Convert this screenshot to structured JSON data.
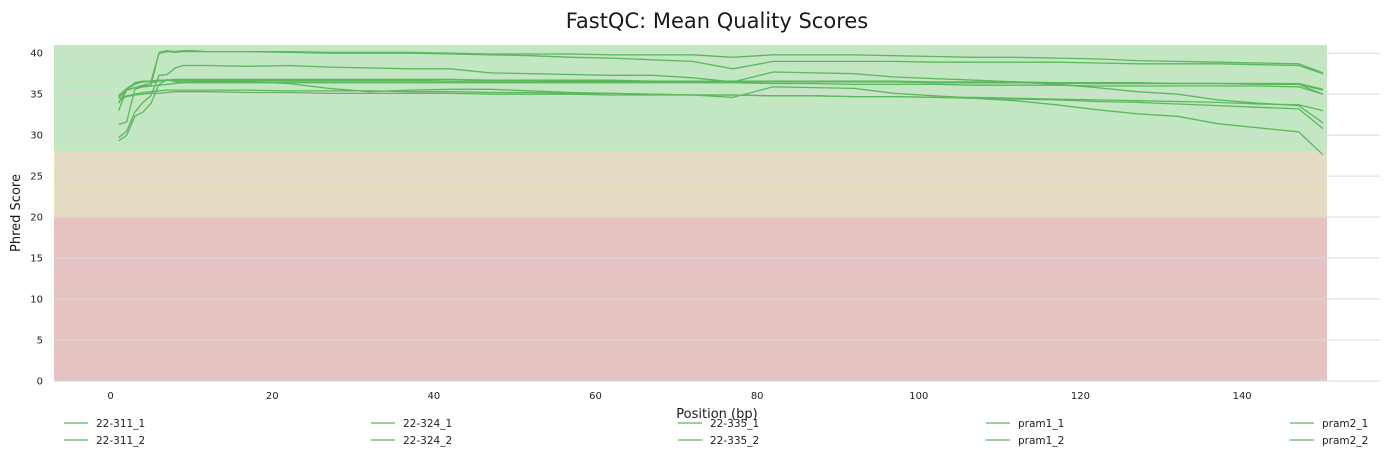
{
  "chart_data": {
    "type": "line",
    "title": "FastQC: Mean Quality Scores",
    "xlabel": "Position (bp)",
    "ylabel": "Phred Score",
    "xlim": [
      -7,
      150.5
    ],
    "ylim": [
      0,
      41
    ],
    "xticks": [
      0,
      20,
      40,
      60,
      80,
      100,
      120,
      140
    ],
    "yticks": [
      0,
      5,
      10,
      15,
      20,
      25,
      30,
      35,
      40
    ],
    "grid": true,
    "legend_position": "bottom",
    "line_color": "#5cb85c",
    "bands": [
      {
        "from": 28,
        "to": 41,
        "color": "#c3e6c3"
      },
      {
        "from": 20,
        "to": 28,
        "color": "#e6dcc3"
      },
      {
        "from": 0,
        "to": 20,
        "color": "#e6c3c3"
      }
    ],
    "series": [
      {
        "name": "22-311_1",
        "x": [
          1,
          2,
          3,
          4,
          5,
          6,
          7,
          8,
          9,
          10,
          12,
          17,
          22,
          27,
          32,
          37,
          42,
          47,
          52,
          57,
          62,
          67,
          72,
          77,
          82,
          87,
          92,
          97,
          102,
          107,
          112,
          117,
          122,
          127,
          132,
          137,
          142,
          147,
          150
        ],
        "y": [
          33.0,
          35.6,
          36.2,
          36.5,
          36.6,
          36.7,
          36.7,
          36.6,
          36.6,
          36.6,
          36.6,
          36.6,
          36.6,
          36.6,
          36.6,
          36.6,
          36.6,
          36.6,
          36.6,
          36.5,
          36.5,
          36.5,
          36.5,
          36.5,
          36.5,
          36.5,
          36.5,
          36.5,
          36.4,
          36.4,
          36.4,
          36.3,
          36.3,
          36.3,
          36.3,
          36.3,
          36.3,
          36.3,
          35.6
        ]
      },
      {
        "name": "22-311_2",
        "x": [
          1,
          2,
          3,
          4,
          5,
          6,
          7,
          8,
          9,
          10,
          12,
          17,
          22,
          27,
          32,
          37,
          42,
          47,
          52,
          57,
          62,
          67,
          72,
          77,
          82,
          87,
          92,
          97,
          102,
          107,
          112,
          117,
          122,
          127,
          132,
          137,
          142,
          147,
          150
        ],
        "y": [
          31.3,
          31.6,
          35.6,
          35.9,
          36.0,
          36.1,
          36.2,
          36.3,
          36.4,
          36.4,
          36.4,
          36.4,
          36.4,
          36.4,
          36.4,
          36.4,
          36.4,
          36.4,
          36.4,
          36.4,
          36.4,
          36.4,
          36.4,
          36.4,
          36.3,
          36.3,
          36.2,
          36.2,
          36.2,
          36.1,
          36.1,
          36.1,
          36.0,
          36.0,
          36.0,
          36.0,
          36.0,
          35.9,
          35.0
        ]
      },
      {
        "name": "22-324_1",
        "x": [
          1,
          2,
          3,
          4,
          5,
          6,
          7,
          8,
          9,
          10,
          12,
          17,
          22,
          27,
          32,
          37,
          42,
          47,
          52,
          57,
          62,
          67,
          72,
          77,
          82,
          87,
          92,
          97,
          102,
          107,
          112,
          117,
          122,
          127,
          132,
          137,
          142,
          147,
          150
        ],
        "y": [
          29.7,
          30.5,
          32.8,
          34.0,
          34.8,
          37.3,
          37.4,
          38.2,
          38.5,
          38.5,
          38.5,
          38.4,
          38.5,
          38.3,
          38.2,
          38.1,
          38.1,
          37.6,
          37.5,
          37.4,
          37.3,
          37.3,
          37.0,
          36.5,
          37.7,
          37.6,
          37.5,
          37.1,
          36.9,
          36.7,
          36.5,
          36.2,
          35.8,
          35.3,
          35.0,
          34.3,
          33.9,
          33.6,
          31.5
        ]
      },
      {
        "name": "22-324_2",
        "x": [
          1,
          2,
          3,
          4,
          5,
          6,
          7,
          8,
          9,
          10,
          12,
          17,
          22,
          27,
          32,
          37,
          42,
          47,
          52,
          57,
          62,
          67,
          72,
          77,
          82,
          87,
          92,
          97,
          102,
          107,
          112,
          117,
          122,
          127,
          132,
          137,
          142,
          147,
          150
        ],
        "y": [
          29.3,
          30.0,
          32.3,
          32.8,
          33.9,
          36.2,
          36.8,
          36.5,
          36.4,
          36.5,
          36.5,
          36.5,
          36.3,
          35.7,
          35.3,
          35.5,
          35.6,
          35.6,
          35.4,
          35.2,
          35.1,
          35.0,
          34.9,
          34.6,
          35.9,
          35.8,
          35.7,
          35.1,
          34.8,
          34.5,
          34.2,
          33.7,
          33.1,
          32.6,
          32.3,
          31.4,
          30.9,
          30.4,
          27.6
        ]
      },
      {
        "name": "22-335_1",
        "x": [
          1,
          2,
          3,
          4,
          5,
          6,
          7,
          8,
          9,
          10,
          12,
          17,
          22,
          27,
          32,
          37,
          42,
          47,
          52,
          57,
          62,
          67,
          72,
          77,
          82,
          87,
          92,
          97,
          102,
          107,
          112,
          117,
          122,
          127,
          132,
          137,
          142,
          147,
          150
        ],
        "y": [
          34.6,
          35.5,
          35.8,
          36.0,
          36.1,
          40.1,
          40.3,
          40.2,
          40.3,
          40.3,
          40.2,
          40.2,
          40.2,
          40.1,
          40.1,
          40.1,
          40.0,
          39.9,
          39.9,
          39.9,
          39.8,
          39.8,
          39.8,
          39.5,
          39.8,
          39.8,
          39.8,
          39.7,
          39.6,
          39.5,
          39.5,
          39.4,
          39.3,
          39.1,
          39.0,
          38.9,
          38.8,
          38.7,
          37.6
        ]
      },
      {
        "name": "22-335_2",
        "x": [
          1,
          2,
          3,
          4,
          5,
          6,
          7,
          8,
          9,
          10,
          12,
          17,
          22,
          27,
          32,
          37,
          42,
          47,
          52,
          57,
          62,
          67,
          72,
          77,
          82,
          87,
          92,
          97,
          102,
          107,
          112,
          117,
          122,
          127,
          132,
          137,
          142,
          147,
          150
        ],
        "y": [
          34.9,
          35.5,
          35.8,
          36.1,
          36.4,
          36.6,
          36.7,
          36.8,
          36.8,
          36.8,
          36.8,
          36.8,
          36.8,
          36.8,
          36.8,
          36.8,
          36.8,
          36.7,
          36.7,
          36.7,
          36.7,
          36.6,
          36.6,
          36.6,
          36.6,
          36.6,
          36.6,
          36.6,
          36.5,
          36.5,
          36.5,
          36.4,
          36.4,
          36.4,
          36.3,
          36.3,
          36.2,
          36.2,
          35.5
        ]
      },
      {
        "name": "pram1_1",
        "x": [
          1,
          2,
          3,
          4,
          5,
          6,
          7,
          8,
          9,
          10,
          12,
          17,
          22,
          27,
          32,
          37,
          42,
          47,
          52,
          57,
          62,
          67,
          72,
          77,
          82,
          87,
          92,
          97,
          102,
          107,
          112,
          117,
          122,
          127,
          132,
          137,
          142,
          147,
          150
        ],
        "y": [
          34.5,
          34.7,
          34.9,
          35.0,
          35.1,
          35.1,
          35.2,
          35.3,
          35.3,
          35.3,
          35.3,
          35.2,
          35.2,
          35.1,
          35.1,
          35.1,
          35.1,
          35.0,
          35.0,
          35.0,
          34.9,
          34.9,
          34.9,
          34.9,
          34.8,
          34.8,
          34.7,
          34.7,
          34.6,
          34.6,
          34.5,
          34.4,
          34.3,
          34.2,
          34.1,
          34.0,
          33.8,
          33.7,
          33.0
        ]
      },
      {
        "name": "pram1_2",
        "x": [
          1,
          2,
          3,
          4,
          5,
          6,
          7,
          8,
          9,
          10,
          12,
          17,
          22,
          27,
          32,
          37,
          42,
          47,
          52,
          57,
          62,
          67,
          72,
          77,
          82,
          87,
          92,
          97,
          102,
          107,
          112,
          117,
          122,
          127,
          132,
          137,
          142,
          147,
          150
        ],
        "y": [
          34.1,
          34.8,
          35.0,
          35.2,
          35.3,
          35.4,
          35.5,
          35.5,
          35.5,
          35.5,
          35.5,
          35.5,
          35.4,
          35.4,
          35.4,
          35.3,
          35.3,
          35.2,
          35.2,
          35.1,
          35.1,
          35.0,
          34.9,
          34.9,
          34.8,
          34.8,
          34.7,
          34.7,
          34.6,
          34.5,
          34.4,
          34.3,
          34.1,
          34.0,
          33.8,
          33.6,
          33.4,
          33.2,
          30.8
        ]
      },
      {
        "name": "pram2_1",
        "x": [
          1,
          2,
          3,
          4,
          5,
          6,
          7,
          8,
          9,
          10,
          12,
          17,
          22,
          27,
          32,
          37,
          42,
          47,
          52,
          57,
          62,
          67,
          72,
          77,
          82,
          87,
          92,
          97,
          102,
          107,
          112,
          117,
          122,
          127,
          132,
          137,
          142,
          147,
          150
        ],
        "y": [
          33.9,
          35.6,
          36.4,
          36.6,
          36.6,
          36.7,
          36.7,
          36.7,
          36.7,
          36.7,
          36.7,
          36.7,
          36.7,
          36.7,
          36.7,
          36.7,
          36.6,
          36.6,
          36.6,
          36.6,
          36.6,
          36.6,
          36.6,
          36.5,
          36.5,
          36.5,
          36.5,
          36.5,
          36.4,
          36.4,
          36.4,
          36.4,
          36.3,
          36.3,
          36.3,
          36.3,
          36.3,
          36.2,
          35.0
        ]
      },
      {
        "name": "pram2_2",
        "x": [
          1,
          2,
          3,
          4,
          5,
          6,
          7,
          8,
          9,
          10,
          12,
          17,
          22,
          27,
          32,
          37,
          42,
          47,
          52,
          57,
          62,
          67,
          72,
          77,
          82,
          87,
          92,
          97,
          102,
          107,
          112,
          117,
          122,
          127,
          132,
          137,
          142,
          147,
          150
        ],
        "y": [
          34.8,
          35.7,
          36.3,
          36.5,
          36.6,
          40.0,
          40.2,
          40.1,
          40.2,
          40.2,
          40.2,
          40.2,
          40.1,
          40.0,
          40.0,
          40.0,
          39.9,
          39.8,
          39.7,
          39.5,
          39.4,
          39.2,
          39.0,
          38.1,
          39.0,
          39.0,
          39.0,
          39.0,
          38.9,
          38.9,
          38.9,
          38.9,
          38.8,
          38.7,
          38.7,
          38.7,
          38.6,
          38.5,
          37.5
        ]
      }
    ]
  }
}
